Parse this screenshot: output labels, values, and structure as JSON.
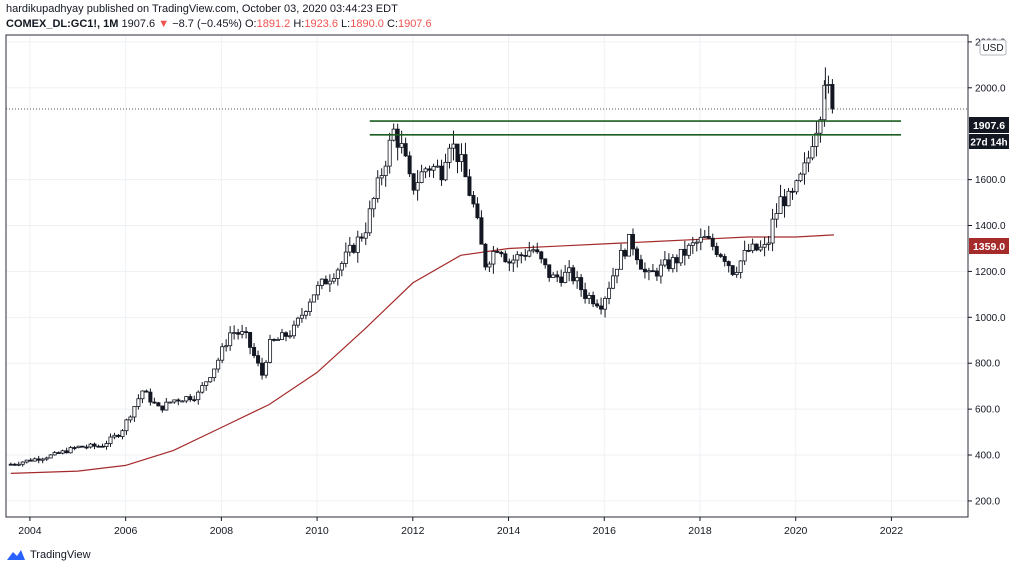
{
  "header": {
    "publisher": "hardikupadhyay",
    "published_text": "published on TradingView.com, October 03, 2020 03:44:23 EDT",
    "symbol": "COMEX_DL:GC1!, 1M",
    "last": "1907.6",
    "change_arrow": "▼",
    "change": "−8.7 (−0.45%)",
    "open_label": "O:",
    "open": "1891.2",
    "high_label": "H:",
    "high": "1923.6",
    "low_label": "L:",
    "low": "1890.0",
    "close_label": "C:",
    "close": "1907.6"
  },
  "currency": "USD",
  "footer": {
    "brand": "TradingView"
  },
  "colors": {
    "candle": "#131722",
    "ma": "#a52a2a",
    "support": "#1b5e20",
    "down": "#ef5350",
    "grid": "#eef1f4",
    "axis": "#131722",
    "ma_badge": "#a52a2a"
  },
  "badges": {
    "price": "1907.6",
    "countdown": "27d 14h",
    "ma": "1359.0"
  },
  "chart_data": {
    "type": "candlestick",
    "title": "",
    "xlabel": "",
    "ylabel": "",
    "x_ticks": [
      "2004",
      "2006",
      "2008",
      "2010",
      "2012",
      "2014",
      "2016",
      "2018",
      "2020",
      "2022"
    ],
    "y_ticks": [
      "200.0",
      "400.0",
      "600.0",
      "800.0",
      "1000.0",
      "1200.0",
      "1400.0",
      "1600.0",
      "2000.0",
      "2200.0"
    ],
    "ylim": [
      130,
      2230
    ],
    "xlim": [
      2003.5,
      2023.6
    ],
    "close_anchors": [
      [
        2003.6,
        360
      ],
      [
        2004.5,
        400
      ],
      [
        2005.0,
        435
      ],
      [
        2005.5,
        440
      ],
      [
        2005.9,
        500
      ],
      [
        2006.35,
        680
      ],
      [
        2006.7,
        600
      ],
      [
        2007.0,
        640
      ],
      [
        2007.5,
        660
      ],
      [
        2007.9,
        800
      ],
      [
        2008.2,
        940
      ],
      [
        2008.5,
        920
      ],
      [
        2008.85,
        750
      ],
      [
        2009.0,
        880
      ],
      [
        2009.5,
        940
      ],
      [
        2009.9,
        1100
      ],
      [
        2010.5,
        1230
      ],
      [
        2011.0,
        1380
      ],
      [
        2011.6,
        1810
      ],
      [
        2011.8,
        1720
      ],
      [
        2011.97,
        1560
      ],
      [
        2012.3,
        1660
      ],
      [
        2012.6,
        1640
      ],
      [
        2012.75,
        1780
      ],
      [
        2013.0,
        1680
      ],
      [
        2013.3,
        1460
      ],
      [
        2013.5,
        1230
      ],
      [
        2013.8,
        1320
      ],
      [
        2014.0,
        1240
      ],
      [
        2014.5,
        1300
      ],
      [
        2014.9,
        1170
      ],
      [
        2015.3,
        1190
      ],
      [
        2015.6,
        1100
      ],
      [
        2015.95,
        1060
      ],
      [
        2016.3,
        1250
      ],
      [
        2016.55,
        1340
      ],
      [
        2016.9,
        1170
      ],
      [
        2017.0,
        1190
      ],
      [
        2017.5,
        1250
      ],
      [
        2017.9,
        1320
      ],
      [
        2018.1,
        1340
      ],
      [
        2018.5,
        1270
      ],
      [
        2018.7,
        1200
      ],
      [
        2019.0,
        1290
      ],
      [
        2019.4,
        1300
      ],
      [
        2019.5,
        1400
      ],
      [
        2019.7,
        1520
      ],
      [
        2019.9,
        1510
      ],
      [
        2020.1,
        1600
      ],
      [
        2020.25,
        1680
      ],
      [
        2020.35,
        1780
      ],
      [
        2020.5,
        1880
      ],
      [
        2020.6,
        2050
      ],
      [
        2020.7,
        1960
      ],
      [
        2020.77,
        1907.6
      ]
    ],
    "seed": 7,
    "moving_average": [
      [
        2003.6,
        320
      ],
      [
        2005.0,
        330
      ],
      [
        2006.0,
        355
      ],
      [
        2007.0,
        420
      ],
      [
        2008.0,
        520
      ],
      [
        2009.0,
        620
      ],
      [
        2010.0,
        760
      ],
      [
        2011.0,
        950
      ],
      [
        2012.0,
        1150
      ],
      [
        2013.0,
        1270
      ],
      [
        2014.0,
        1300
      ],
      [
        2015.0,
        1310
      ],
      [
        2016.0,
        1320
      ],
      [
        2017.0,
        1330
      ],
      [
        2018.0,
        1340
      ],
      [
        2019.0,
        1350
      ],
      [
        2020.0,
        1350
      ],
      [
        2020.8,
        1359
      ]
    ],
    "horizontal_levels": [
      {
        "y": 1855,
        "x_start": 2011.1,
        "x_end": 2022.2
      },
      {
        "y": 1795,
        "x_start": 2011.1,
        "x_end": 2022.2
      }
    ],
    "last_price": 1907.6,
    "ma_last": 1359.0
  }
}
